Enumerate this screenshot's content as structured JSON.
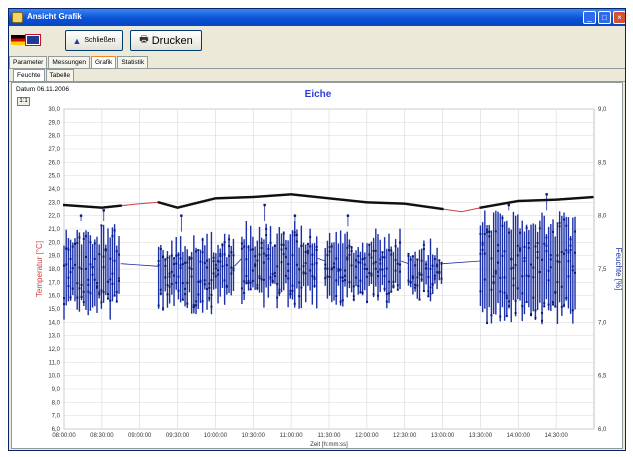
{
  "window": {
    "title": "Ansicht Grafik",
    "buttons": {
      "minimize": "_",
      "maximize": "□",
      "close": "×"
    }
  },
  "toolbar": {
    "schliessen_label": "Schließen",
    "drucken_label": "Drucken",
    "icons": [
      "flag-de-icon",
      "flag-gb-icon",
      "close-tree-icon",
      "printer-icon"
    ]
  },
  "tabs": [
    {
      "label": "Parameter",
      "active": false
    },
    {
      "label": "Messungen",
      "active": false
    },
    {
      "label": "Grafik",
      "active": true
    },
    {
      "label": "Statistik",
      "active": false
    }
  ],
  "subtabs": [
    {
      "label": "Feuchte",
      "active": true
    },
    {
      "label": "Tabelle",
      "active": false
    }
  ],
  "datum": "Datum 06.11.2006",
  "small_button_label": "1:1",
  "chart_data": {
    "type": "scatter",
    "title": "Eiche",
    "xlabel": "Zeit [h:mm:ss]",
    "ylabel_left": "Temperatur [°C]",
    "ylabel_right": "Feuchte [%]",
    "colors": {
      "temperature": "#d04040",
      "humidity": "#1a2fa8",
      "title": "#2b3fd6",
      "grid": "#d8d8d8"
    },
    "x_ticks": [
      "08:00:00",
      "08:30:00",
      "09:00:00",
      "09:30:00",
      "10:00:00",
      "10:30:00",
      "11:00:00",
      "11:30:00",
      "12:00:00",
      "12:30:00",
      "13:00:00",
      "13:30:00",
      "14:00:00",
      "14:30:00"
    ],
    "ylim_left": [
      6,
      30
    ],
    "ylim_right": [
      6,
      9
    ],
    "y_ticks_left": [
      "6,0",
      "7,0",
      "8,0",
      "9,0",
      "10,0",
      "11,0",
      "12,0",
      "13,0",
      "14,0",
      "15,0",
      "16,0",
      "17,0",
      "18,0",
      "19,0",
      "20,0",
      "21,0",
      "22,0",
      "23,0",
      "24,0",
      "25,0",
      "26,0",
      "27,0",
      "28,0",
      "29,0",
      "30,0"
    ],
    "y_ticks_right": [
      "6,0",
      "6,5",
      "7,0",
      "7,5",
      "8,0",
      "8,5",
      "9,0"
    ],
    "grid": true,
    "series": [
      {
        "name": "Temperatur",
        "axis": "left",
        "x_hours": [
          8.0,
          8.5,
          9.0,
          9.25,
          9.5,
          10.0,
          10.5,
          11.0,
          11.5,
          12.0,
          12.5,
          13.0,
          13.25,
          13.5,
          14.0,
          14.5,
          15.0
        ],
        "values": [
          22.8,
          22.6,
          22.9,
          23.0,
          22.6,
          23.3,
          23.4,
          23.6,
          23.3,
          23.0,
          22.9,
          22.5,
          22.3,
          22.6,
          23.1,
          23.2,
          23.4
        ]
      },
      {
        "name": "Feuchte",
        "axis": "right",
        "segments": [
          {
            "x_hours": [
              8.0,
              8.75
            ],
            "low": 7.15,
            "high": 7.95,
            "spikes": [
              8.0,
              8.05
            ]
          },
          {
            "x_hours": [
              9.25,
              10.25
            ],
            "low": 7.2,
            "high": 7.85,
            "spikes": [
              8.0
            ]
          },
          {
            "x_hours": [
              10.35,
              11.35
            ],
            "low": 7.25,
            "high": 7.95,
            "spikes": [
              8.1,
              8.0
            ]
          },
          {
            "x_hours": [
              11.45,
              12.45
            ],
            "low": 7.25,
            "high": 7.9,
            "spikes": [
              8.0
            ]
          },
          {
            "x_hours": [
              12.55,
              13.0
            ],
            "low": 7.3,
            "high": 7.8,
            "spikes": []
          },
          {
            "x_hours": [
              13.5,
              14.75
            ],
            "low": 7.1,
            "high": 8.05,
            "spikes": [
              8.1,
              8.2
            ]
          }
        ]
      }
    ]
  }
}
